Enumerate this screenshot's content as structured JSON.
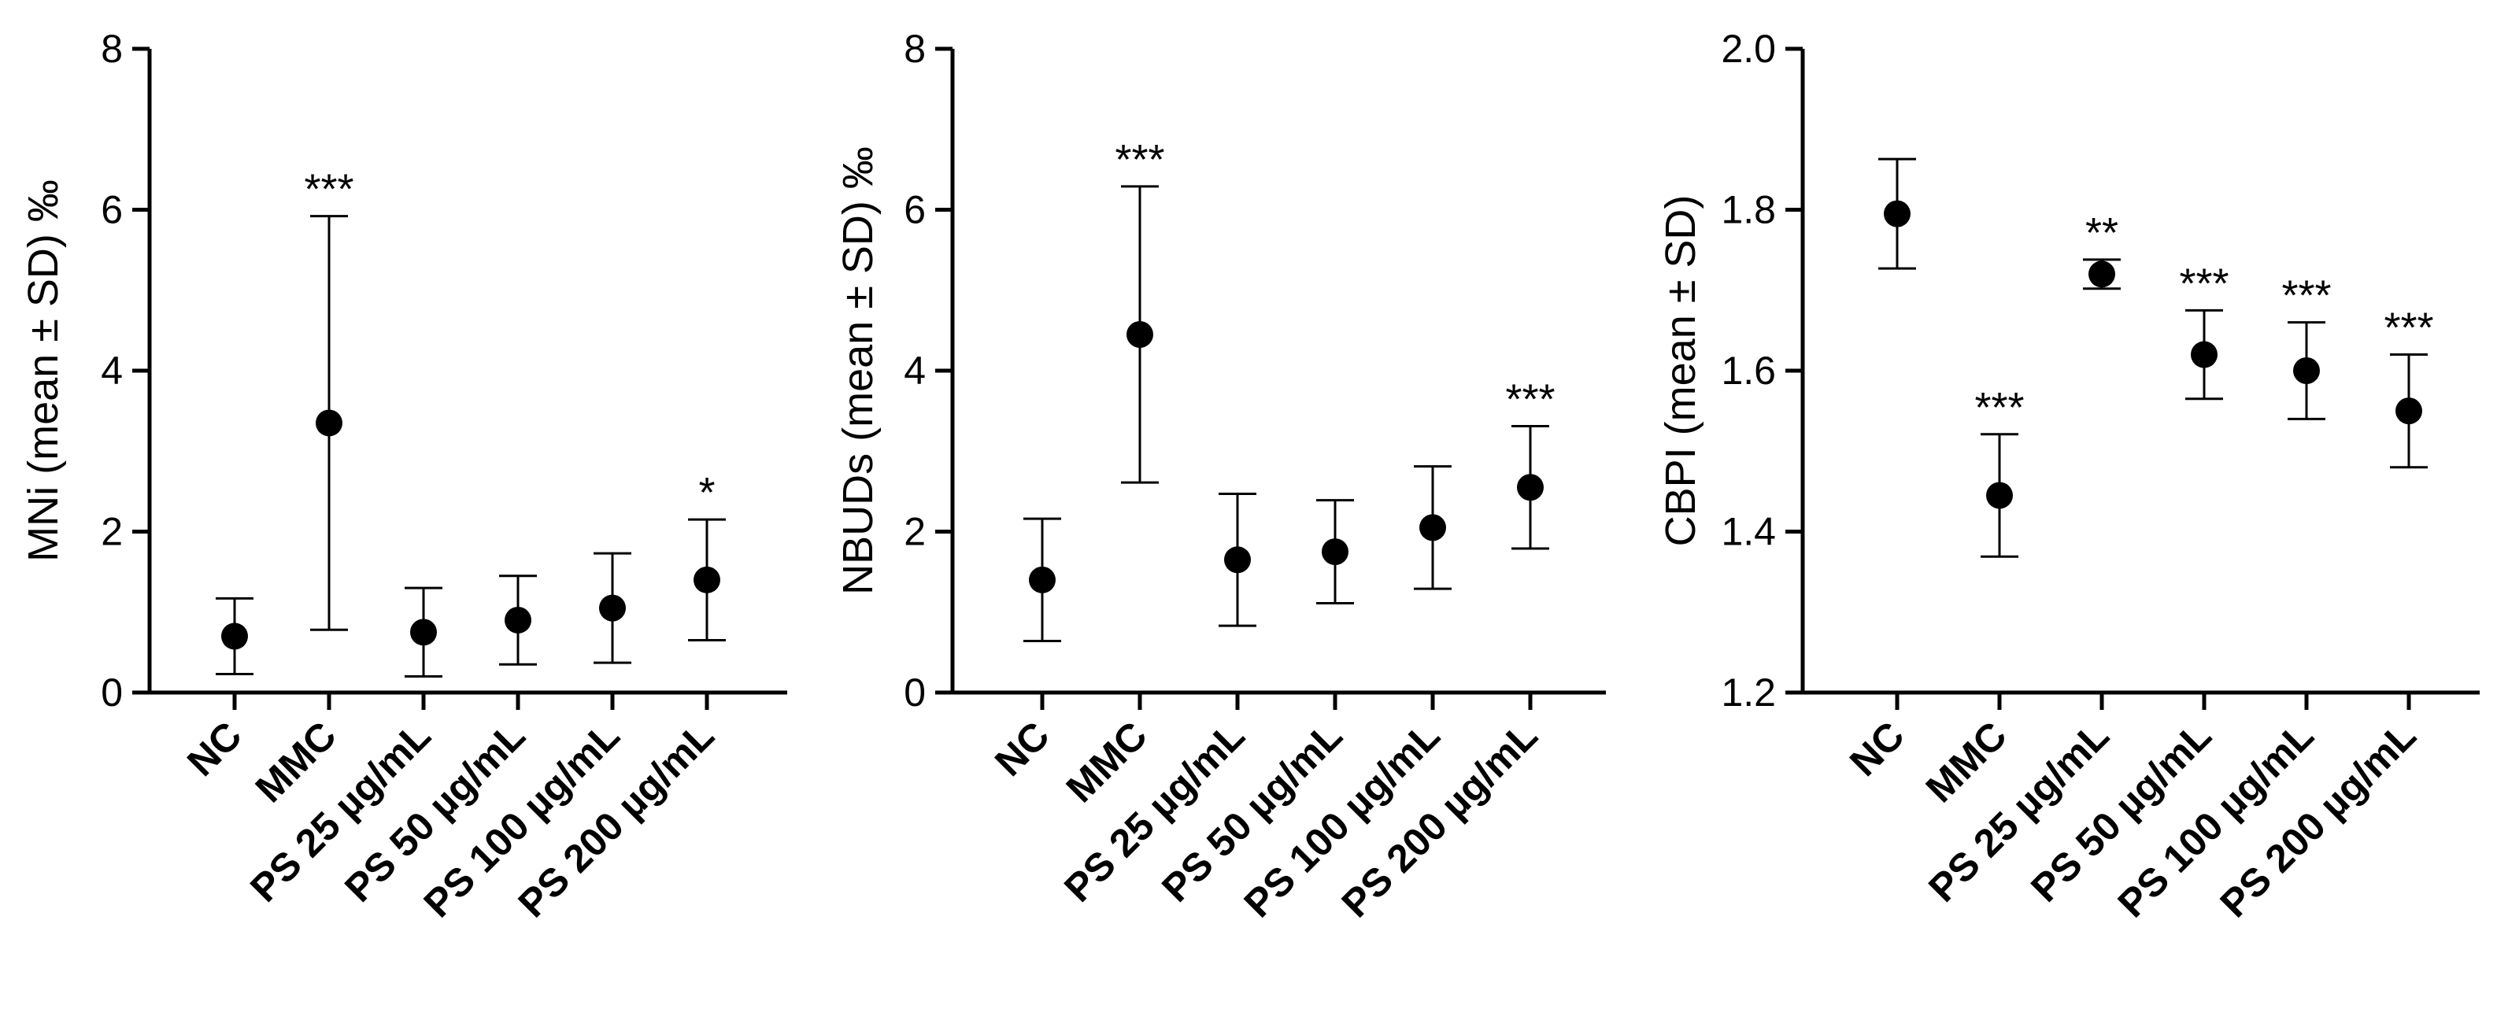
{
  "chart_data": [
    {
      "type": "scatter",
      "ylabel": "MNi (mean ± SD) ‰",
      "ylim": [
        0,
        8
      ],
      "yticks": [
        0,
        2,
        4,
        6,
        8
      ],
      "ytick_labels": [
        "0",
        "2",
        "4",
        "6",
        "8"
      ],
      "categories": [
        "NC",
        "MMC",
        "PS 25 µg/mL",
        "PS 50 µg/mL",
        "PS 100 µg/mL",
        "PS 200 µg/mL"
      ],
      "values": [
        0.7,
        3.35,
        0.75,
        0.9,
        1.05,
        1.4
      ],
      "sd": [
        0.47,
        2.57,
        0.55,
        0.55,
        0.68,
        0.75
      ],
      "significance": [
        "",
        "***",
        "",
        "",
        "",
        "*"
      ]
    },
    {
      "type": "scatter",
      "ylabel": "NBUDs (mean ± SD) ‰",
      "ylim": [
        0,
        8
      ],
      "yticks": [
        0,
        2,
        4,
        6,
        8
      ],
      "ytick_labels": [
        "0",
        "2",
        "4",
        "6",
        "8"
      ],
      "categories": [
        "NC",
        "MMC",
        "PS 25 µg/mL",
        "PS 50 µg/mL",
        "PS 100 µg/mL",
        "PS 200 µg/mL"
      ],
      "values": [
        1.4,
        4.45,
        1.65,
        1.75,
        2.05,
        2.55
      ],
      "sd": [
        0.76,
        1.84,
        0.82,
        0.64,
        0.76,
        0.76
      ],
      "significance": [
        "",
        "***",
        "",
        "",
        "",
        "***"
      ]
    },
    {
      "type": "scatter",
      "ylabel": "CBPI (mean ± SD)",
      "ylim": [
        1.2,
        2.0
      ],
      "yticks": [
        1.2,
        1.4,
        1.6,
        1.8,
        2.0
      ],
      "ytick_labels": [
        "1.2",
        "1.4",
        "1.6",
        "1.8",
        "2.0"
      ],
      "categories": [
        "NC",
        "MMC",
        "PS 25 µg/mL",
        "PS 50 µg/mL",
        "PS 100 µg/mL",
        "PS 200 µg/mL"
      ],
      "values": [
        1.795,
        1.445,
        1.72,
        1.62,
        1.6,
        1.55
      ],
      "sd": [
        0.068,
        0.076,
        0.018,
        0.055,
        0.06,
        0.07
      ],
      "significance": [
        "",
        "***",
        "**",
        "***",
        "***",
        "***"
      ]
    }
  ]
}
